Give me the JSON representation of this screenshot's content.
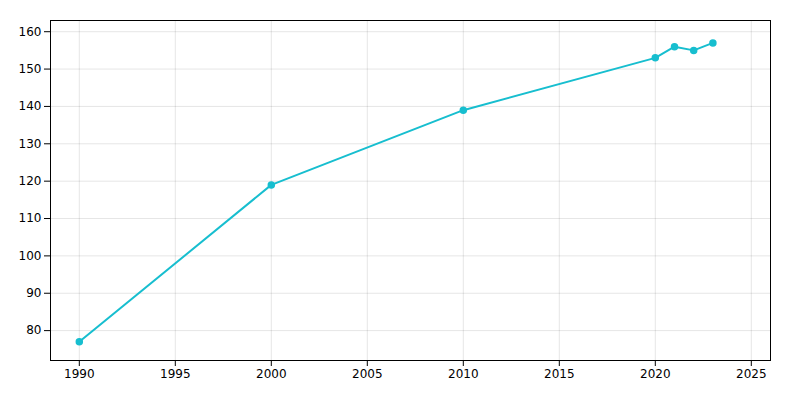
{
  "chart_data": {
    "type": "line",
    "x": [
      1990,
      2000,
      2010,
      2020,
      2021,
      2022,
      2023
    ],
    "values": [
      77,
      119,
      139,
      153,
      156,
      155,
      157
    ],
    "color": "#17becf",
    "marker": "circle",
    "xlim": [
      1988.5,
      2026
    ],
    "ylim": [
      72,
      163
    ],
    "xticks": [
      1990,
      1995,
      2000,
      2005,
      2010,
      2015,
      2020,
      2025
    ],
    "yticks": [
      80,
      90,
      100,
      110,
      120,
      130,
      140,
      150,
      160
    ],
    "grid": true
  }
}
